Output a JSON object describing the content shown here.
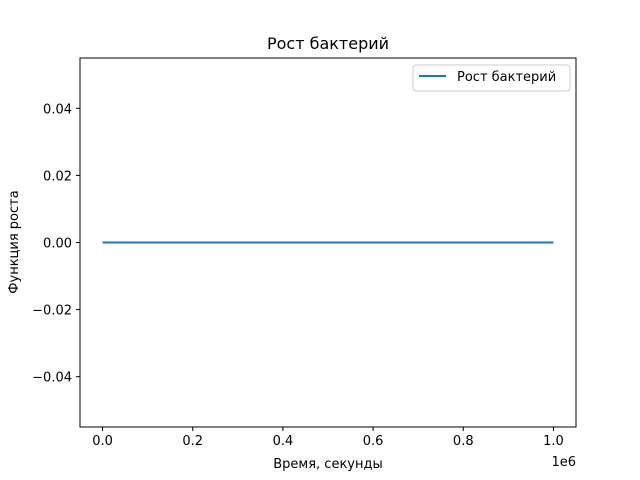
{
  "chart_data": {
    "type": "line",
    "title": "Рост бактерий",
    "xlabel": "Время, секунды",
    "ylabel": "Функция роста",
    "x_offset_label": "1e6",
    "xlim": [
      -0.05,
      1.05
    ],
    "ylim": [
      -0.055,
      0.055
    ],
    "x_ticks": [
      0.0,
      0.2,
      0.4,
      0.6,
      0.8,
      1.0
    ],
    "x_tick_labels": [
      "0.0",
      "0.2",
      "0.4",
      "0.6",
      "0.8",
      "1.0"
    ],
    "y_ticks": [
      -0.04,
      -0.02,
      0.0,
      0.02,
      0.04
    ],
    "y_tick_labels": [
      "−0.04",
      "−0.02",
      "0.00",
      "0.02",
      "0.04"
    ],
    "grid": false,
    "legend_position": "top-right",
    "series": [
      {
        "name": "Рост бактерий",
        "color": "#1f77b4",
        "x": [
          0.0,
          1.0
        ],
        "y": [
          0.0,
          0.0
        ]
      }
    ]
  }
}
